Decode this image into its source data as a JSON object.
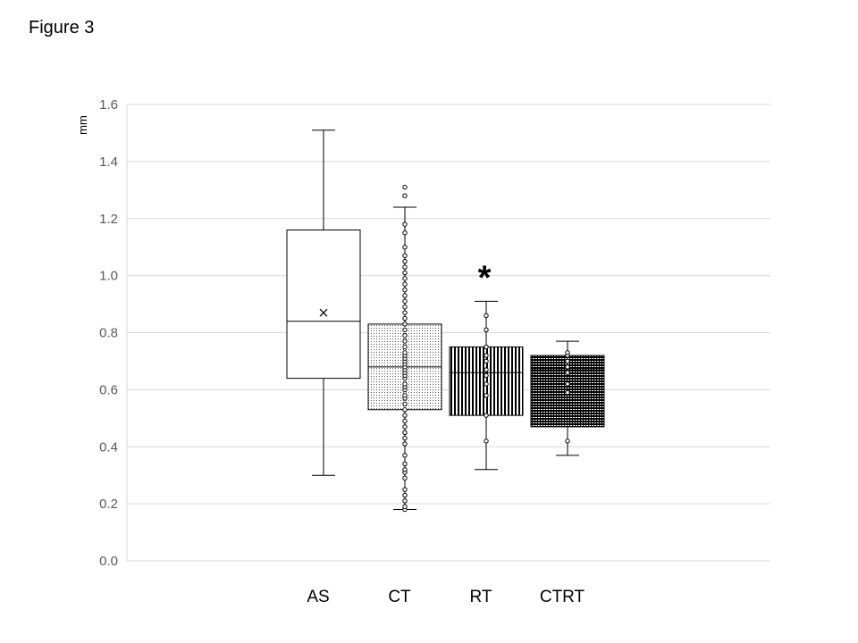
{
  "figure_label": "Figure 3",
  "chart_data": {
    "type": "box",
    "ylabel": "mm",
    "ylim": [
      0,
      1.6
    ],
    "yticks": [
      "0.0",
      "0.2",
      "0.4",
      "0.6",
      "0.8",
      "1.0",
      "1.2",
      "1.4",
      "1.6"
    ],
    "grid": true,
    "categories": [
      "AS",
      "CT",
      "RT",
      "CTRT"
    ],
    "boxes": [
      {
        "category": "AS",
        "pattern": "none",
        "min": 0.3,
        "q1": 0.64,
        "median": 0.84,
        "q3": 1.16,
        "max": 1.51,
        "mean": 0.87,
        "points": [],
        "outliers": []
      },
      {
        "category": "CT",
        "pattern": "dots",
        "min": 0.18,
        "q1": 0.53,
        "median": 0.68,
        "q3": 0.83,
        "max": 1.24,
        "points": [
          0.18,
          0.19,
          0.21,
          0.23,
          0.25,
          0.29,
          0.31,
          0.32,
          0.34,
          0.37,
          0.41,
          0.43,
          0.45,
          0.47,
          0.49,
          0.51,
          0.53,
          0.55,
          0.57,
          0.58,
          0.6,
          0.61,
          0.62,
          0.64,
          0.65,
          0.66,
          0.67,
          0.68,
          0.69,
          0.7,
          0.71,
          0.72,
          0.73,
          0.75,
          0.77,
          0.79,
          0.81,
          0.83,
          0.85,
          0.87,
          0.89,
          0.91,
          0.93,
          0.95,
          0.97,
          0.99,
          1.01,
          1.03,
          1.05,
          1.07,
          1.1,
          1.15,
          1.18
        ],
        "outliers": [
          1.28,
          1.31
        ]
      },
      {
        "category": "RT",
        "pattern": "vertical-lines",
        "min": 0.32,
        "q1": 0.51,
        "median": 0.66,
        "q3": 0.75,
        "max": 0.91,
        "points": [
          0.42,
          0.51,
          0.58,
          0.62,
          0.65,
          0.67,
          0.7,
          0.72,
          0.75,
          0.81,
          0.86
        ],
        "outliers": [],
        "annotation": "*"
      },
      {
        "category": "CTRT",
        "pattern": "horizontal-lines",
        "min": 0.37,
        "q1": 0.47,
        "median": 0.67,
        "q3": 0.72,
        "max": 0.77,
        "points": [
          0.42,
          0.59,
          0.62,
          0.66,
          0.68,
          0.7,
          0.72,
          0.73
        ],
        "outliers": []
      }
    ]
  }
}
